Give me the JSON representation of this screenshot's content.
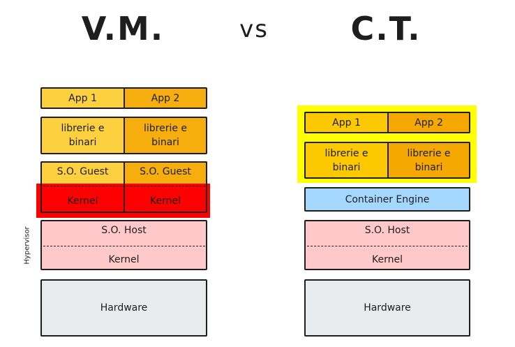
{
  "titles": {
    "vm": "V.M.",
    "vs": "vs",
    "ct": "C.T."
  },
  "vm": {
    "app1": "App 1",
    "app2": "App 2",
    "libs1": "librerie e binari",
    "libs2": "librerie e binari",
    "guest1": "S.O. Guest",
    "guest2": "S.O. Guest",
    "kernel1": "Kernel",
    "kernel2": "Kernel",
    "host": "S.O. Host",
    "host_kernel": "Kernel",
    "hypervisor": "Hypervisor",
    "hardware": "Hardware"
  },
  "ct": {
    "app1": "App 1",
    "app2": "App 2",
    "libs1": "librerie e binari",
    "libs2": "librerie e binari",
    "engine": "Container Engine",
    "host": "S.O. Host",
    "host_kernel": "Kernel",
    "hardware": "Hardware"
  },
  "colors": {
    "app_light": "#fcd03f",
    "app_dark": "#f5ae0e",
    "kernel_highlight": "#ff0000",
    "container_highlight": "#ffff00",
    "engine": "#a5d8ff",
    "host": "#ffc9c9",
    "hardware": "#e9ecef"
  }
}
